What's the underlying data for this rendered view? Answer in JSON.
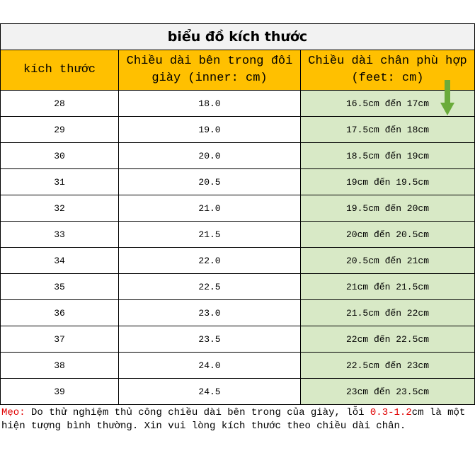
{
  "title": "biểu đồ kích thước",
  "table": {
    "header": [
      "kích thước",
      "Chiều dài bên trong đôi giày (inner: cm)",
      "Chiều dài chân phù hợp (feet: cm)"
    ],
    "rows": [
      [
        "28",
        "18.0",
        "16.5cm đến 17cm"
      ],
      [
        "29",
        "19.0",
        "17.5cm đến 18cm"
      ],
      [
        "30",
        "20.0",
        "18.5cm đến 19cm"
      ],
      [
        "31",
        "20.5",
        "19cm đến 19.5cm"
      ],
      [
        "32",
        "21.0",
        "19.5cm đến 20cm"
      ],
      [
        "33",
        "21.5",
        "20cm đến 20.5cm"
      ],
      [
        "34",
        "22.0",
        "20.5cm đến 21cm"
      ],
      [
        "35",
        "22.5",
        "21cm đến 21.5cm"
      ],
      [
        "36",
        "23.0",
        "21.5cm đến 22cm"
      ],
      [
        "37",
        "23.5",
        "22cm đến 22.5cm"
      ],
      [
        "38",
        "24.0",
        "22.5cm đến 23cm"
      ],
      [
        "39",
        "24.5",
        "23cm đến 23.5cm"
      ]
    ]
  },
  "notes": {
    "label": "Mẹo:",
    "text1": "Do thử nghiệm thủ công chiều dài bên trong của giày, lỗi",
    "highlight": "0.3-1.2",
    "text2": "cm là một hiện tượng bình thường. Xin vui lòng kích thước theo chiều dài chân."
  }
}
